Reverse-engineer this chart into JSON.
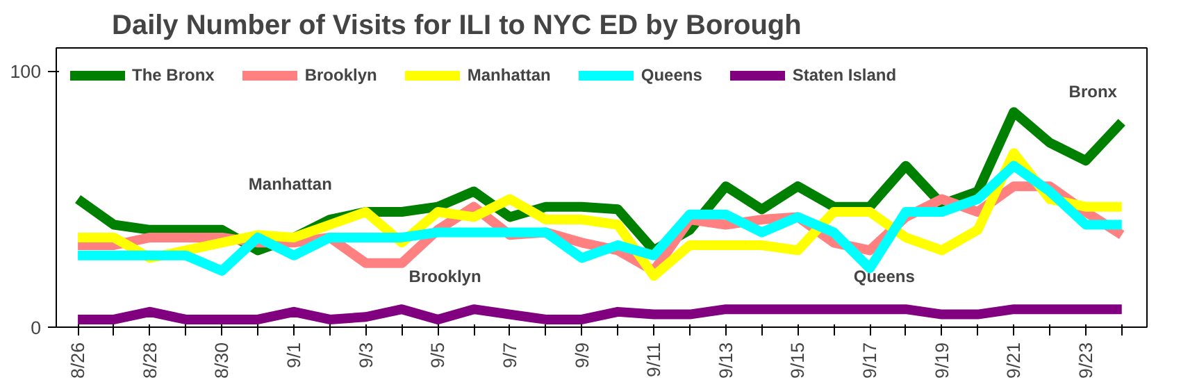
{
  "chart_data": {
    "type": "line",
    "title": "Daily Number of Visits for ILI to NYC  ED by Borough",
    "categories": [
      "8/26",
      null,
      "8/28",
      null,
      "8/30",
      null,
      "9/1",
      null,
      "9/3",
      null,
      "9/5",
      null,
      "9/7",
      null,
      "9/9",
      null,
      "9/11",
      null,
      "9/13",
      null,
      "9/15",
      null,
      "9/17",
      null,
      "9/19",
      null,
      "9/21",
      null,
      "9/23",
      null
    ],
    "series": [
      {
        "name": "The Bronx",
        "color": "#008000",
        "values": [
          50,
          40,
          38,
          38,
          38,
          30,
          35,
          42,
          45,
          45,
          47,
          53,
          43,
          47,
          47,
          46,
          30,
          38,
          55,
          46,
          55,
          47,
          47,
          63,
          48,
          53,
          84,
          72,
          65,
          80
        ]
      },
      {
        "name": "Brooklyn",
        "color": "#ff8080",
        "values": [
          32,
          32,
          35,
          35,
          35,
          33,
          33,
          35,
          25,
          25,
          38,
          47,
          36,
          37,
          33,
          30,
          22,
          42,
          40,
          42,
          43,
          33,
          30,
          43,
          50,
          45,
          55,
          55,
          45,
          36
        ]
      },
      {
        "name": "Manhattan",
        "color": "#ffff00",
        "values": [
          35,
          35,
          27,
          30,
          33,
          36,
          35,
          40,
          45,
          33,
          45,
          43,
          50,
          42,
          42,
          40,
          20,
          32,
          32,
          32,
          30,
          45,
          45,
          35,
          30,
          38,
          68,
          50,
          47,
          47
        ]
      },
      {
        "name": "Queens",
        "color": "#00ffff",
        "values": [
          28,
          28,
          28,
          28,
          22,
          35,
          28,
          35,
          35,
          35,
          37,
          37,
          37,
          37,
          27,
          32,
          28,
          44,
          44,
          37,
          43,
          37,
          23,
          45,
          45,
          50,
          63,
          53,
          40,
          40
        ]
      },
      {
        "name": "Staten Island",
        "color": "#800080",
        "values": [
          3,
          3,
          6,
          3,
          3,
          3,
          6,
          3,
          4,
          7,
          3,
          7,
          5,
          3,
          3,
          6,
          5,
          5,
          7,
          7,
          7,
          7,
          7,
          7,
          5,
          5,
          7,
          7,
          7,
          7
        ]
      }
    ],
    "ylim": [
      0,
      109
    ],
    "yticks": [
      0,
      100
    ],
    "grid": false,
    "legend": "top left",
    "line_style": "solid",
    "marker": "none",
    "annotations": [
      "Manhattan",
      "Brooklyn",
      "Queens",
      "Bronx"
    ]
  }
}
